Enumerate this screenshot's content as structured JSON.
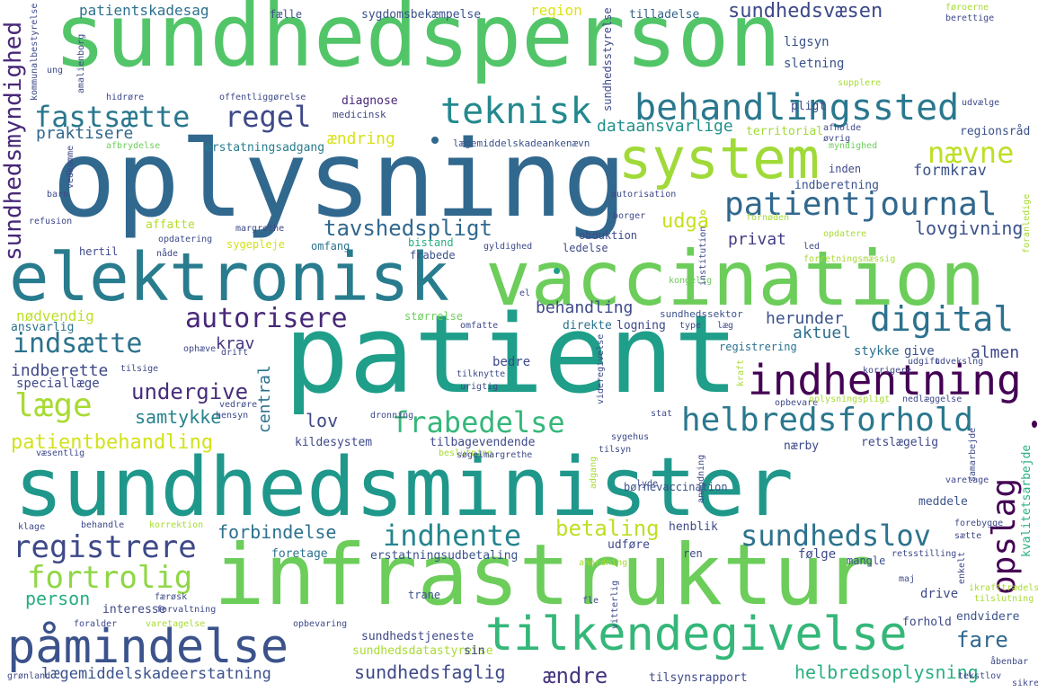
{
  "words": [
    {
      "text": "sundhedsperson",
      "color": "#52c569"
    },
    {
      "text": "oplysning",
      "color": "#31688e"
    },
    {
      "text": "patient",
      "color": "#1f9e89"
    },
    {
      "text": "sundhedsminister",
      "color": "#1f988b"
    },
    {
      "text": "infrastruktur",
      "color": "#6ccd5a"
    },
    {
      "text": "vaccination",
      "color": "#6ccd5a"
    },
    {
      "text": "elektronisk",
      "color": "#287c8e"
    },
    {
      "text": "system",
      "color": "#a0da39"
    },
    {
      "text": "påmindelse",
      "color": "#3b528b"
    },
    {
      "text": "tilkendegivelse",
      "color": "#35b779"
    },
    {
      "text": "indhentning",
      "color": "#440154"
    },
    {
      "text": "behandlingssted",
      "color": "#2a788e"
    },
    {
      "text": "teknisk",
      "color": "#23898e"
    },
    {
      "text": "patientjournal",
      "color": "#31688e"
    },
    {
      "text": "helbredsforhold",
      "color": "#2a788e"
    },
    {
      "text": "digital",
      "color": "#2c728e"
    },
    {
      "text": "fastsætte",
      "color": "#2a788e"
    },
    {
      "text": "regel",
      "color": "#3e4989"
    },
    {
      "text": "nævne",
      "color": "#bddf26"
    },
    {
      "text": "autorisere",
      "color": "#482878"
    },
    {
      "text": "registrere",
      "color": "#3e4989"
    },
    {
      "text": "fortrolig",
      "color": "#8fd744"
    },
    {
      "text": "læge",
      "color": "#a8db34"
    },
    {
      "text": "indsætte",
      "color": "#2c728e"
    },
    {
      "text": "frabedelse",
      "color": "#35b779"
    },
    {
      "text": "indhente",
      "color": "#25858e"
    },
    {
      "text": "sundhedslov",
      "color": "#2c728e"
    },
    {
      "text": "tavshedspligt",
      "color": "#31688e"
    },
    {
      "text": "opslag",
      "color": "#440154"
    },
    {
      "text": "udgå",
      "color": "#c8e020"
    },
    {
      "text": "sundhedsvæsen",
      "color": "#3e4989"
    },
    {
      "text": "sundhedsmyndighed",
      "color": "#482878"
    },
    {
      "text": "patientbehandling",
      "color": "#d2e21b"
    },
    {
      "text": "betaling",
      "color": "#bddf26"
    },
    {
      "text": "undergive",
      "color": "#472d7b"
    },
    {
      "text": "samtykke",
      "color": "#26828e"
    },
    {
      "text": "forbindelse",
      "color": "#2c728e"
    },
    {
      "text": "person",
      "color": "#27ad81"
    },
    {
      "text": "sundhedsfaglig",
      "color": "#3e4989"
    },
    {
      "text": "ændre",
      "color": "#463480"
    },
    {
      "text": "fare",
      "color": "#31688e"
    },
    {
      "text": "helbredsoplysning",
      "color": "#2ab07f"
    },
    {
      "text": "lægemiddelskadeerstatning",
      "color": "#3b528b"
    },
    {
      "text": "privat",
      "color": "#433e85"
    },
    {
      "text": "lovgivning",
      "color": "#3b528b"
    },
    {
      "text": "formkrav",
      "color": "#3b528b"
    },
    {
      "text": "behandling",
      "color": "#3e4989"
    },
    {
      "text": "aktuel",
      "color": "#2d708e"
    },
    {
      "text": "herunder",
      "color": "#3b528b"
    },
    {
      "text": "almen",
      "color": "#3e4989"
    },
    {
      "text": "krav",
      "color": "#443983"
    },
    {
      "text": "lov",
      "color": "#3e4989"
    },
    {
      "text": "central",
      "color": "#2c728e"
    },
    {
      "text": "dataansvarlige",
      "color": "#21918c"
    },
    {
      "text": "praktisere",
      "color": "#31688e"
    },
    {
      "text": "ændring",
      "color": "#d8e219"
    },
    {
      "text": "nødvendig",
      "color": "#bddf26"
    },
    {
      "text": "indberette",
      "color": "#3e4989"
    },
    {
      "text": "speciallæge",
      "color": "#3e4989"
    },
    {
      "text": "patientskadesag",
      "color": "#2c728e"
    },
    {
      "text": "sygdomsbekæmpelse",
      "color": "#3b528b"
    },
    {
      "text": "region",
      "color": "#dde318"
    },
    {
      "text": "tilladelse",
      "color": "#33638d"
    },
    {
      "text": "ligsyn",
      "color": "#3b528b"
    },
    {
      "text": "sletning",
      "color": "#3b528b"
    },
    {
      "text": "pligt",
      "color": "#3e4989"
    },
    {
      "text": "regionsråd",
      "color": "#3b528b"
    },
    {
      "text": "diagnose",
      "color": "#482878"
    },
    {
      "text": "medicinsk",
      "color": "#3e4989"
    },
    {
      "text": "erstatningsadgang",
      "color": "#287c8e"
    },
    {
      "text": "lægemiddelskadeankenævn",
      "color": "#3b528b"
    },
    {
      "text": "territorial",
      "color": "#a0da39"
    },
    {
      "text": "indberetning",
      "color": "#3b528b"
    },
    {
      "text": "inden",
      "color": "#3e4989"
    },
    {
      "text": "affatte",
      "color": "#b5de2b"
    },
    {
      "text": "hertil",
      "color": "#3e4989"
    },
    {
      "text": "sygepleje",
      "color": "#d2e21b"
    },
    {
      "text": "omfang",
      "color": "#2c728e"
    },
    {
      "text": "bistand",
      "color": "#29af7f"
    },
    {
      "text": "frabede",
      "color": "#3b528b"
    },
    {
      "text": "ledelse",
      "color": "#3e4989"
    },
    {
      "text": "obduktion",
      "color": "#3e4989"
    },
    {
      "text": "ansvarlig",
      "color": "#2c728e"
    },
    {
      "text": "størrelse",
      "color": "#6ccd5a"
    },
    {
      "text": "logning",
      "color": "#3e4989"
    },
    {
      "text": "direkte",
      "color": "#2c728e"
    },
    {
      "text": "sundhedssektor",
      "color": "#3b528b"
    },
    {
      "text": "registrering",
      "color": "#2c728e"
    },
    {
      "text": "stykke",
      "color": "#2c728e"
    },
    {
      "text": "give",
      "color": "#3b528b"
    },
    {
      "text": "bedre",
      "color": "#3e4989"
    },
    {
      "text": "kildesystem",
      "color": "#3e4989"
    },
    {
      "text": "tilbagevendende",
      "color": "#3e4989"
    },
    {
      "text": "nærby",
      "color": "#3e4989"
    },
    {
      "text": "retslægelig",
      "color": "#3e4989"
    },
    {
      "text": "børnevaccination",
      "color": "#3b528b"
    },
    {
      "text": "meddele",
      "color": "#3b528b"
    },
    {
      "text": "kvalitetsarbejde",
      "color": "#2ab07f"
    },
    {
      "text": "henblik",
      "color": "#3e4989"
    },
    {
      "text": "foretage",
      "color": "#2c728e"
    },
    {
      "text": "udføre",
      "color": "#3e4989"
    },
    {
      "text": "følge",
      "color": "#3e4989"
    },
    {
      "text": "mangle",
      "color": "#3b528b"
    },
    {
      "text": "erstatningsudbetaling",
      "color": "#3b528b"
    },
    {
      "text": "ren",
      "color": "#3e4989"
    },
    {
      "text": "trane",
      "color": "#3b528b"
    },
    {
      "text": "drive",
      "color": "#3e4989"
    },
    {
      "text": "interesse",
      "color": "#3e4989"
    },
    {
      "text": "forhold",
      "color": "#3e4989"
    },
    {
      "text": "endvidere",
      "color": "#3b528b"
    },
    {
      "text": "sundhedstjeneste",
      "color": "#3e4989"
    },
    {
      "text": "sundhedsdatastyrelse",
      "color": "#a8db34"
    },
    {
      "text": "sin",
      "color": "#3e4989"
    },
    {
      "text": "tilsynsrapport",
      "color": "#3e4989"
    },
    {
      "text": "fælle",
      "color": "#3b528b"
    },
    {
      "text": "sundhedsstyrelse",
      "color": "#3e4989"
    },
    {
      "text": "amalienborg",
      "color": "#3e4989"
    },
    {
      "text": "kommunalbestyrelse",
      "color": "#3e4989"
    },
    {
      "text": "føroerne",
      "color": "#a8db34"
    },
    {
      "text": "berettige",
      "color": "#3e4989"
    },
    {
      "text": "supplere",
      "color": "#a8db34"
    },
    {
      "text": "udvælge",
      "color": "#3e4989"
    },
    {
      "text": "ung",
      "color": "#3e4989"
    },
    {
      "text": "hidrøre",
      "color": "#3e4989"
    },
    {
      "text": "offentliggørelse",
      "color": "#3e4989"
    },
    {
      "text": "afbrydelse",
      "color": "#6ccd5a"
    },
    {
      "text": "afholde",
      "color": "#3e4989"
    },
    {
      "text": "øvrig",
      "color": "#3e4989"
    },
    {
      "text": "myndighed",
      "color": "#6ccd5a"
    },
    {
      "text": "autorisation",
      "color": "#3e4989"
    },
    {
      "text": "borger",
      "color": "#3e4989"
    },
    {
      "text": "barn",
      "color": "#3e4989"
    },
    {
      "text": "vedkomme",
      "color": "#3e4989"
    },
    {
      "text": "refusion",
      "color": "#3e4989"
    },
    {
      "text": "margrethe",
      "color": "#3e4989"
    },
    {
      "text": "opdatering",
      "color": "#3e4989"
    },
    {
      "text": "nåde",
      "color": "#3e4989"
    },
    {
      "text": "gyldighed",
      "color": "#3e4989"
    },
    {
      "text": "fornøden",
      "color": "#a8db34"
    },
    {
      "text": "opdatere",
      "color": "#a8db34"
    },
    {
      "text": "led",
      "color": "#3e4989"
    },
    {
      "text": "forretningsmæssig",
      "color": "#a8db34"
    },
    {
      "text": "foranledige",
      "color": "#a8db34"
    },
    {
      "text": "kongelig",
      "color": "#6ccd5a"
    },
    {
      "text": "institution",
      "color": "#3e4989"
    },
    {
      "text": "ophæve",
      "color": "#3e4989"
    },
    {
      "text": "omfatte",
      "color": "#3e4989"
    },
    {
      "text": "videregivelse",
      "color": "#3e4989"
    },
    {
      "text": "type",
      "color": "#3e4989"
    },
    {
      "text": "læg",
      "color": "#3e4989"
    },
    {
      "text": "udgift",
      "color": "#3e4989"
    },
    {
      "text": "korrigere",
      "color": "#3e4989"
    },
    {
      "text": "udvekslng",
      "color": "#3e4989"
    },
    {
      "text": "drift",
      "color": "#3e4989"
    },
    {
      "text": "tilsige",
      "color": "#3e4989"
    },
    {
      "text": "tilknytte",
      "color": "#3e4989"
    },
    {
      "text": "urigtig",
      "color": "#3e4989"
    },
    {
      "text": "kraft",
      "color": "#a8db34"
    },
    {
      "text": "opbevare",
      "color": "#3e4989"
    },
    {
      "text": "oplysningspligt",
      "color": "#a8db34"
    },
    {
      "text": "nedlæggelse",
      "color": "#3e4989"
    },
    {
      "text": "hensyn",
      "color": "#3e4989"
    },
    {
      "text": "dronning",
      "color": "#3e4989"
    },
    {
      "text": "stat",
      "color": "#3e4989"
    },
    {
      "text": "vedrøre",
      "color": "#3e4989"
    },
    {
      "text": "væsentlig",
      "color": "#3e4989"
    },
    {
      "text": "beslutning",
      "color": "#a8db34"
    },
    {
      "text": "sygehus",
      "color": "#3e4989"
    },
    {
      "text": "tilsyn",
      "color": "#3e4989"
    },
    {
      "text": "søgelmargrethe",
      "color": "#3e4989"
    },
    {
      "text": "adgang",
      "color": "#a8db34"
    },
    {
      "text": "samarbejde",
      "color": "#3e4989"
    },
    {
      "text": "varetage",
      "color": "#3e4989"
    },
    {
      "text": "klage",
      "color": "#3e4989"
    },
    {
      "text": "behandle",
      "color": "#3e4989"
    },
    {
      "text": "korrektion",
      "color": "#a8db34"
    },
    {
      "text": "anmodning",
      "color": "#3e4989"
    },
    {
      "text": "forebygge",
      "color": "#3e4989"
    },
    {
      "text": "sætte",
      "color": "#3e4989"
    },
    {
      "text": "anordning",
      "color": "#a8db34"
    },
    {
      "text": "retsstilling",
      "color": "#3e4989"
    },
    {
      "text": "enkelt",
      "color": "#3e4989"
    },
    {
      "text": "maj",
      "color": "#3e4989"
    },
    {
      "text": "ikrafttrædelse",
      "color": "#a8db34"
    },
    {
      "text": "tilslutning",
      "color": "#a8db34"
    },
    {
      "text": "færøsk",
      "color": "#3e4989"
    },
    {
      "text": "forvaltning",
      "color": "#3e4989"
    },
    {
      "text": "foralder",
      "color": "#3e4989"
    },
    {
      "text": "varetagelse",
      "color": "#a8db34"
    },
    {
      "text": "opbevaring",
      "color": "#3e4989"
    },
    {
      "text": "fle",
      "color": "#3e4989"
    },
    {
      "text": "vitterlig",
      "color": "#3e4989"
    },
    {
      "text": "grønland",
      "color": "#3e4989"
    },
    {
      "text": "åbenbar",
      "color": "#3e4989"
    },
    {
      "text": "tekstlov",
      "color": "#3e4989"
    },
    {
      "text": "sikre",
      "color": "#3e4989"
    },
    {
      "text": "lyde",
      "color": "#3e4989"
    },
    {
      "text": "el",
      "color": "#3e4989"
    }
  ]
}
